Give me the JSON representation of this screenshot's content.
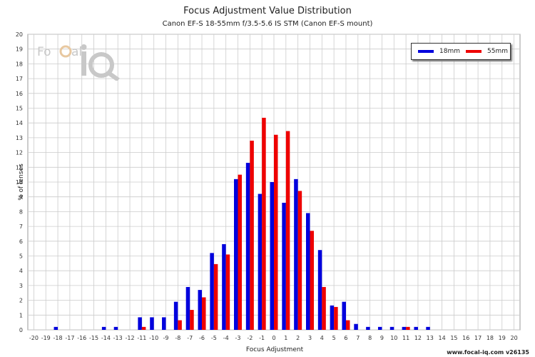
{
  "chart_data": {
    "type": "bar",
    "title": "Focus Adjustment Value Distribution",
    "subtitle": "Canon EF-S 18-55mm f/3.5-5.6 IS STM (Canon EF-S mount)",
    "xlabel": "Focus Adjustment",
    "ylabel": "% of lenses",
    "xlim": [
      -20,
      20
    ],
    "ylim": [
      0,
      20
    ],
    "grid": true,
    "legend_position": "top-right",
    "x": [
      -20,
      -19,
      -18,
      -17,
      -16,
      -15,
      -14,
      -13,
      -12,
      -11,
      -10,
      -9,
      -8,
      -7,
      -6,
      -5,
      -4,
      -3,
      -2,
      -1,
      0,
      1,
      2,
      3,
      4,
      5,
      6,
      7,
      8,
      9,
      10,
      11,
      12,
      13,
      14,
      15,
      16,
      17,
      18,
      19,
      20
    ],
    "series": [
      {
        "name": "18mm",
        "color": "#0000dd",
        "values": [
          0,
          0,
          0.2,
          0,
          0,
          0,
          0.2,
          0.2,
          0,
          0.85,
          0.85,
          0.85,
          1.9,
          2.9,
          2.7,
          5.2,
          5.8,
          10.2,
          11.3,
          9.2,
          10.0,
          8.6,
          10.2,
          7.9,
          5.4,
          1.65,
          1.9,
          0.4,
          0.2,
          0.2,
          0.2,
          0.2,
          0.2,
          0.2,
          0,
          0,
          0,
          0,
          0,
          0,
          0
        ]
      },
      {
        "name": "55mm",
        "color": "#ee0000",
        "values": [
          0,
          0,
          0,
          0,
          0,
          0,
          0,
          0,
          0,
          0.2,
          0,
          0,
          0.65,
          1.35,
          2.2,
          4.45,
          5.1,
          10.5,
          12.8,
          14.35,
          13.2,
          13.45,
          9.4,
          6.7,
          2.9,
          1.55,
          0.65,
          0,
          0,
          0,
          0,
          0.2,
          0,
          0,
          0,
          0,
          0,
          0,
          0,
          0,
          0
        ]
      }
    ]
  },
  "footer": "www.focal-iq.com  v26135",
  "logo": {
    "name": "focal-iq-logo",
    "text": "FoCal iQ"
  }
}
